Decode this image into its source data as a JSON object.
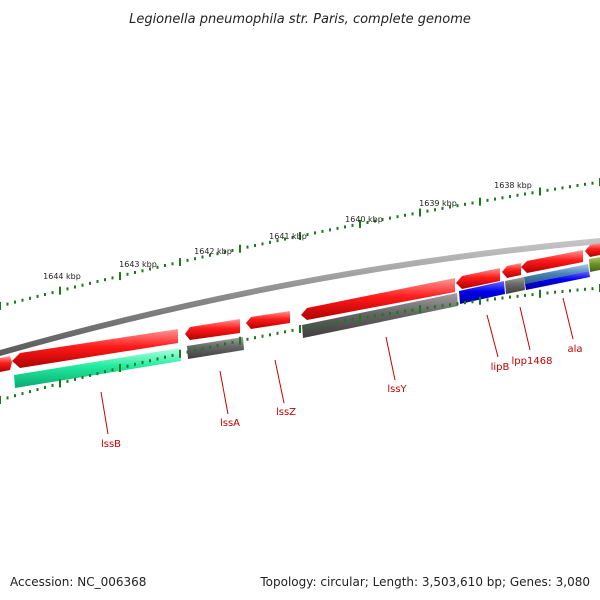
{
  "title": "Legionella pneumophila str. Paris, complete genome",
  "footer": {
    "accession": "Accession: NC_006368",
    "summary": "Topology: circular; Length: 3,503,610 bp; Genes: 3,080"
  },
  "scale_labels": [
    "1644 kbp",
    "1643 kbp",
    "1642 kbp",
    "1641 kbp",
    "1640 kbp",
    "1639 kbp",
    "1638 kbp"
  ],
  "gene_labels": [
    "lssB",
    "lssA",
    "lssZ",
    "lssY",
    "lipB",
    "lpp1468",
    "ala"
  ],
  "colors": {
    "forward_cds": "#ee0000",
    "reverse_gray": "#606060",
    "teal": "#1de9a0",
    "blue": "#0000e6",
    "steel": "#4682b4",
    "olive": "#6b8e23",
    "tick": "#1a7a1a",
    "label_red": "#c00000",
    "backbone": "#888888"
  }
}
